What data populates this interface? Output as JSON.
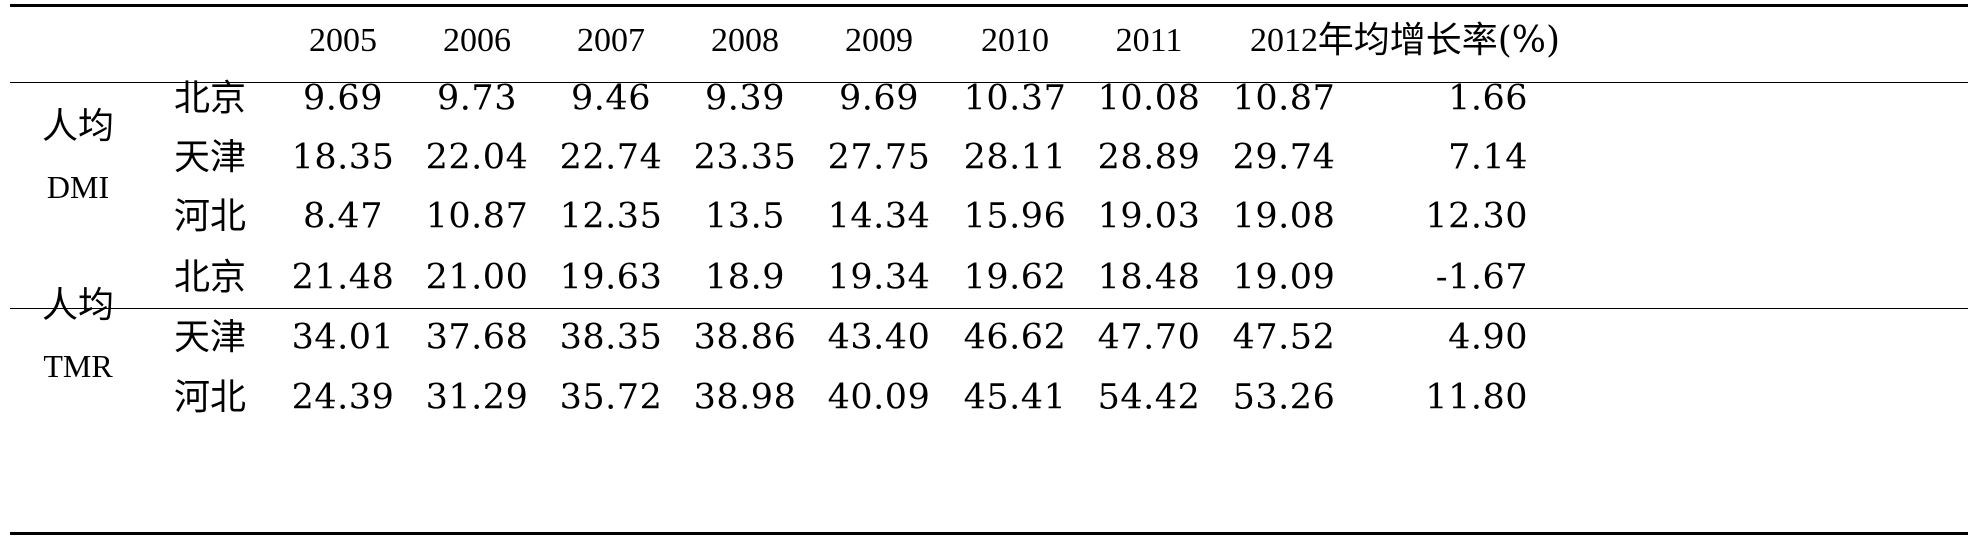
{
  "table": {
    "columns": [
      "2005",
      "2006",
      "2007",
      "2008",
      "2009",
      "2010",
      "2011",
      "2012",
      "年均增长率(%)"
    ],
    "groups": [
      {
        "label_line1": "人均",
        "label_line2": "DMI",
        "rows": [
          {
            "region": "北京",
            "values": [
              "9.69",
              "9.73",
              "9.46",
              "9.39",
              "9.69",
              "10.37",
              "10.08",
              "10.87",
              "1.66"
            ]
          },
          {
            "region": "天津",
            "values": [
              "18.35",
              "22.04",
              "22.74",
              "23.35",
              "27.75",
              "28.11",
              "28.89",
              "29.74",
              "7.14"
            ]
          },
          {
            "region": "河北",
            "values": [
              "8.47",
              "10.87",
              "12.35",
              "13.5",
              "14.34",
              "15.96",
              "19.03",
              "19.08",
              "12.30"
            ]
          }
        ]
      },
      {
        "label_line1": "人均",
        "label_line2": "TMR",
        "rows": [
          {
            "region": "北京",
            "values": [
              "21.48",
              "21.00",
              "19.63",
              "18.9",
              "19.34",
              "19.62",
              "18.48",
              "19.09",
              "-1.67"
            ]
          },
          {
            "region": "天津",
            "values": [
              "34.01",
              "37.68",
              "38.35",
              "38.86",
              "43.40",
              "46.62",
              "47.70",
              "47.52",
              "4.90"
            ]
          },
          {
            "region": "河北",
            "values": [
              "24.39",
              "31.29",
              "35.72",
              "38.98",
              "40.09",
              "45.41",
              "54.42",
              "53.26",
              "11.80"
            ]
          }
        ]
      }
    ]
  }
}
